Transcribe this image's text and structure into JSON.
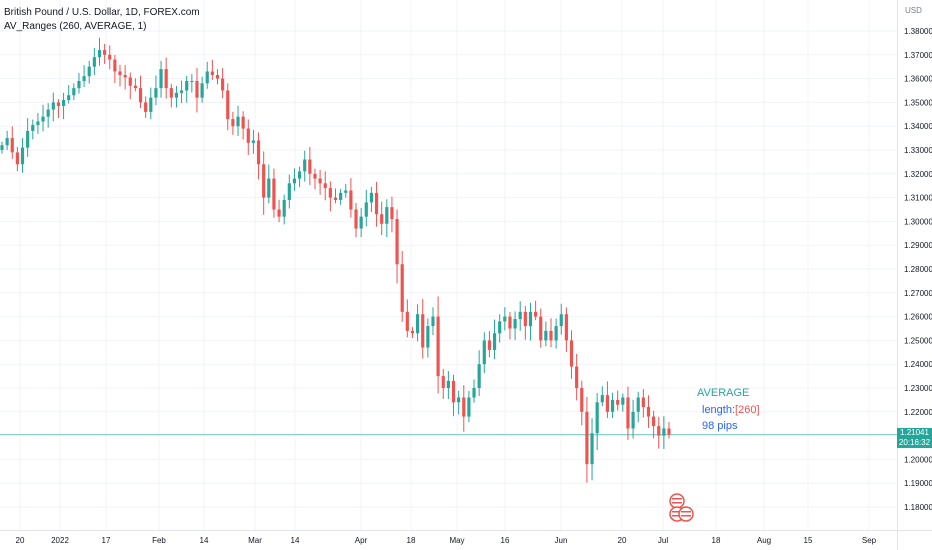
{
  "header": {
    "symbol_line": "British Pound / U.S. Dollar, 1D, FOREX.com",
    "indicator_line": "AV_Ranges (260, AVERAGE, 1)"
  },
  "axis": {
    "currency": "USD",
    "x_labels": [
      "20",
      "2022",
      "17",
      "Feb",
      "14",
      "Mar",
      "14",
      "Apr",
      "18",
      "May",
      "16",
      "Jun",
      "20",
      "Jul",
      "18",
      "Aug",
      "15",
      "Sep"
    ]
  },
  "last_price": {
    "value": "1.21041",
    "countdown": "20:16:32"
  },
  "annotation": {
    "title": "AVERAGE",
    "length_label": "length:",
    "length_value": "[260]",
    "pips": "98 pips"
  },
  "colors": {
    "up": "#26a69a",
    "down": "#ef5350",
    "grid": "#f0f3fa",
    "price_line": "#26a69a",
    "annotation_title": "#26a69a",
    "annotation_value": "#ef5350",
    "annotation_text": "#2962ff"
  },
  "chart_data": {
    "type": "candlestick",
    "title": "British Pound / U.S. Dollar, 1D, FOREX.com",
    "ylabel": "USD",
    "ylim": [
      1.175,
      1.39
    ],
    "yticks": [
      1.18,
      1.19,
      1.2,
      1.21,
      1.22,
      1.23,
      1.24,
      1.25,
      1.26,
      1.27,
      1.28,
      1.29,
      1.3,
      1.31,
      1.32,
      1.33,
      1.34,
      1.35,
      1.36,
      1.37,
      1.38
    ],
    "closes": [
      1.332,
      1.335,
      1.329,
      1.324,
      1.331,
      1.338,
      1.3405,
      1.342,
      1.344,
      1.347,
      1.35,
      1.3485,
      1.351,
      1.353,
      1.356,
      1.359,
      1.361,
      1.365,
      1.369,
      1.372,
      1.37,
      1.368,
      1.363,
      1.3615,
      1.3605,
      1.357,
      1.356,
      1.35,
      1.346,
      1.352,
      1.356,
      1.364,
      1.356,
      1.352,
      1.354,
      1.355,
      1.359,
      1.359,
      1.352,
      1.358,
      1.363,
      1.3615,
      1.36,
      1.355,
      1.343,
      1.34,
      1.344,
      1.339,
      1.333,
      1.334,
      1.324,
      1.31,
      1.318,
      1.305,
      1.302,
      1.309,
      1.316,
      1.318,
      1.321,
      1.326,
      1.32,
      1.318,
      1.316,
      1.314,
      1.31,
      1.309,
      1.312,
      1.313,
      1.305,
      1.297,
      1.302,
      1.308,
      1.312,
      1.303,
      1.299,
      1.306,
      1.301,
      1.282,
      1.262,
      1.254,
      1.253,
      1.261,
      1.247,
      1.256,
      1.26,
      1.235,
      1.23,
      1.233,
      1.224,
      1.226,
      1.218,
      1.226,
      1.23,
      1.24,
      1.25,
      1.246,
      1.253,
      1.258,
      1.26,
      1.255,
      1.259,
      1.262,
      1.256,
      1.262,
      1.26,
      1.25,
      1.254,
      1.25,
      1.256,
      1.261,
      1.25,
      1.239,
      1.23,
      1.22,
      1.198,
      1.211,
      1.224,
      1.227,
      1.22,
      1.225,
      1.223,
      1.226,
      1.213,
      1.22,
      1.226,
      1.222,
      1.218,
      1.214,
      1.21,
      1.213,
      1.2104
    ],
    "x_tick_positions": [
      20,
      60,
      106,
      159,
      204,
      255,
      295,
      361,
      411,
      457,
      505,
      561,
      622,
      663,
      716,
      764,
      808,
      869
    ]
  }
}
